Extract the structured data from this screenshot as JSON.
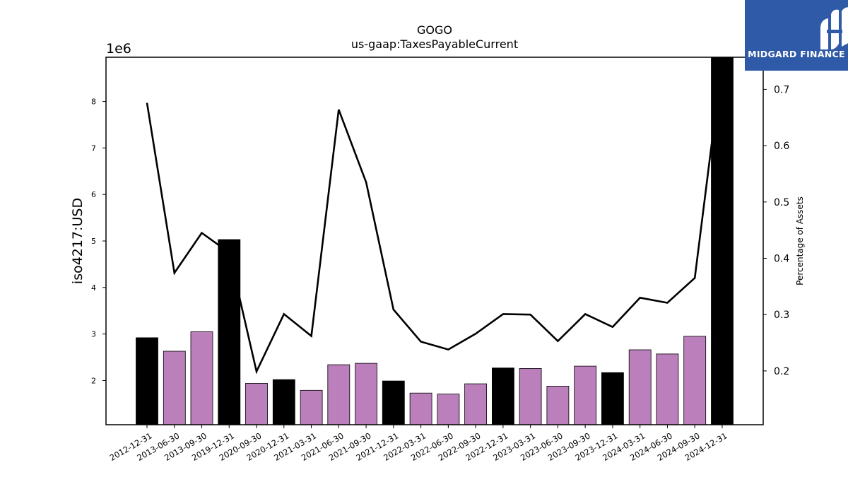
{
  "chart_data": {
    "type": "bar",
    "title": "GOGO",
    "subtitle": "us-gaap:TaxesPayableCurrent",
    "ylabel": "iso4217:USD",
    "y2label": "Percentage of Assets",
    "y_multiplier_label": "1e6",
    "ylim": [
      1050000,
      8950000
    ],
    "y2lim": [
      0.1045,
      0.757
    ],
    "yticks": [
      "2",
      "3",
      "4",
      "5",
      "6",
      "7",
      "8"
    ],
    "y2ticks": [
      "0.2",
      "0.3",
      "0.4",
      "0.5",
      "0.6",
      "0.7"
    ],
    "categories": [
      "2012-12-31",
      "2013-06-30",
      "2013-09-30",
      "2019-12-31",
      "2020-09-30",
      "2020-12-31",
      "2021-03-31",
      "2021-06-30",
      "2021-09-30",
      "2021-12-31",
      "2022-03-31",
      "2022-06-30",
      "2022-09-30",
      "2022-12-31",
      "2023-03-31",
      "2023-06-30",
      "2023-09-30",
      "2023-12-31",
      "2024-03-31",
      "2024-06-30",
      "2024-09-30",
      "2024-12-31"
    ],
    "values": [
      2920000,
      2630000,
      3050000,
      5030000,
      1940000,
      2020000,
      1790000,
      2340000,
      2370000,
      1990000,
      1730000,
      1710000,
      1930000,
      2270000,
      2260000,
      1880000,
      2310000,
      2170000,
      2660000,
      2570000,
      2950000,
      8950000
    ],
    "bar_colors": [
      "#000000",
      "#bb7fbb",
      "#bb7fbb",
      "#000000",
      "#bb7fbb",
      "#000000",
      "#bb7fbb",
      "#bb7fbb",
      "#bb7fbb",
      "#000000",
      "#bb7fbb",
      "#bb7fbb",
      "#bb7fbb",
      "#000000",
      "#bb7fbb",
      "#bb7fbb",
      "#bb7fbb",
      "#000000",
      "#bb7fbb",
      "#bb7fbb",
      "#bb7fbb",
      "#000000"
    ],
    "line_series": {
      "values": [
        0.676,
        0.374,
        0.445,
        0.41,
        0.199,
        0.301,
        0.262,
        0.664,
        0.535,
        0.309,
        0.252,
        0.238,
        0.266,
        0.301,
        0.3,
        0.253,
        0.301,
        0.278,
        0.33,
        0.321,
        0.365,
        0.752
      ],
      "color": "#000000"
    },
    "grid": false,
    "legend": "none"
  },
  "logo": {
    "text": "MIDGARD FINANCE",
    "bg": "#2f5aa8"
  }
}
